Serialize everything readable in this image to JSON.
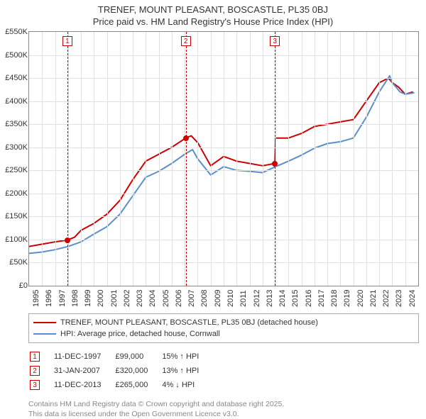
{
  "title": {
    "line1": "TRENEF, MOUNT PLEASANT, BOSCASTLE, PL35 0BJ",
    "line2": "Price paid vs. HM Land Registry's House Price Index (HPI)"
  },
  "chart": {
    "type": "line",
    "background_color": "#ffffff",
    "grid_color": "#e0e0e0",
    "border_color": "#888888",
    "ylim": [
      0,
      550
    ],
    "yticks": [
      0,
      50,
      100,
      150,
      200,
      250,
      300,
      350,
      400,
      450,
      500,
      550
    ],
    "yticklabels": [
      "£0",
      "£50K",
      "£100K",
      "£150K",
      "£200K",
      "£250K",
      "£300K",
      "£350K",
      "£400K",
      "£450K",
      "£500K",
      "£550K"
    ],
    "xlim": [
      1995,
      2025
    ],
    "xticks": [
      1995,
      1996,
      1997,
      1998,
      1999,
      2000,
      2001,
      2002,
      2003,
      2004,
      2005,
      2006,
      2007,
      2008,
      2009,
      2010,
      2011,
      2012,
      2013,
      2014,
      2015,
      2016,
      2017,
      2018,
      2019,
      2020,
      2021,
      2022,
      2023,
      2024
    ],
    "series": [
      {
        "name": "property",
        "label": "TRENEF, MOUNT PLEASANT, BOSCASTLE, PL35 0BJ (detached house)",
        "color": "#cc0000",
        "line_width": 2,
        "points": [
          [
            1995,
            85
          ],
          [
            1996,
            90
          ],
          [
            1997,
            95
          ],
          [
            1997.95,
            99
          ],
          [
            1998.5,
            105
          ],
          [
            1999,
            120
          ],
          [
            2000,
            135
          ],
          [
            2001,
            155
          ],
          [
            2002,
            185
          ],
          [
            2003,
            230
          ],
          [
            2004,
            270
          ],
          [
            2005,
            285
          ],
          [
            2006,
            300
          ],
          [
            2007.08,
            320
          ],
          [
            2007.5,
            325
          ],
          [
            2008,
            310
          ],
          [
            2009,
            260
          ],
          [
            2010,
            280
          ],
          [
            2011,
            270
          ],
          [
            2012,
            265
          ],
          [
            2013,
            260
          ],
          [
            2013.95,
            265
          ],
          [
            2014,
            320
          ],
          [
            2015,
            320
          ],
          [
            2016,
            330
          ],
          [
            2017,
            345
          ],
          [
            2018,
            350
          ],
          [
            2019,
            355
          ],
          [
            2020,
            360
          ],
          [
            2021,
            400
          ],
          [
            2022,
            440
          ],
          [
            2022.7,
            450
          ],
          [
            2023,
            440
          ],
          [
            2023.5,
            430
          ],
          [
            2024,
            415
          ],
          [
            2024.6,
            420
          ]
        ]
      },
      {
        "name": "hpi",
        "label": "HPI: Average price, detached house, Cornwall",
        "color": "#5b8fc7",
        "line_width": 2,
        "points": [
          [
            1995,
            70
          ],
          [
            1996,
            73
          ],
          [
            1997,
            78
          ],
          [
            1998,
            85
          ],
          [
            1999,
            95
          ],
          [
            2000,
            112
          ],
          [
            2001,
            128
          ],
          [
            2002,
            155
          ],
          [
            2003,
            195
          ],
          [
            2004,
            235
          ],
          [
            2005,
            248
          ],
          [
            2006,
            265
          ],
          [
            2007,
            285
          ],
          [
            2007.6,
            295
          ],
          [
            2008,
            275
          ],
          [
            2009,
            240
          ],
          [
            2010,
            258
          ],
          [
            2011,
            250
          ],
          [
            2012,
            248
          ],
          [
            2013,
            245
          ],
          [
            2014,
            258
          ],
          [
            2015,
            270
          ],
          [
            2016,
            283
          ],
          [
            2017,
            298
          ],
          [
            2018,
            308
          ],
          [
            2019,
            312
          ],
          [
            2020,
            320
          ],
          [
            2021,
            365
          ],
          [
            2022,
            420
          ],
          [
            2022.8,
            455
          ],
          [
            2023,
            440
          ],
          [
            2023.6,
            420
          ],
          [
            2024,
            415
          ],
          [
            2024.7,
            418
          ]
        ]
      }
    ],
    "markers": [
      {
        "n": "1",
        "x": 1997.95,
        "y": 99,
        "color": "#cc0000"
      },
      {
        "n": "2",
        "x": 2007.08,
        "y": 320,
        "color": "#cc0000"
      },
      {
        "n": "3",
        "x": 2013.95,
        "y": 265,
        "color": "#cc0000"
      }
    ]
  },
  "legend": {
    "rows": [
      {
        "color": "#cc0000",
        "label": "TRENEF, MOUNT PLEASANT, BOSCASTLE, PL35 0BJ (detached house)"
      },
      {
        "color": "#5b8fc7",
        "label": "HPI: Average price, detached house, Cornwall"
      }
    ]
  },
  "marker_table": {
    "rows": [
      {
        "n": "1",
        "date": "11-DEC-1997",
        "price": "£99,000",
        "delta": "15% ↑ HPI"
      },
      {
        "n": "2",
        "date": "31-JAN-2007",
        "price": "£320,000",
        "delta": "13% ↑ HPI"
      },
      {
        "n": "3",
        "date": "11-DEC-2013",
        "price": "£265,000",
        "delta": "4% ↓ HPI"
      }
    ]
  },
  "footer": {
    "line1": "Contains HM Land Registry data © Crown copyright and database right 2025.",
    "line2": "This data is licensed under the Open Government Licence v3.0."
  }
}
